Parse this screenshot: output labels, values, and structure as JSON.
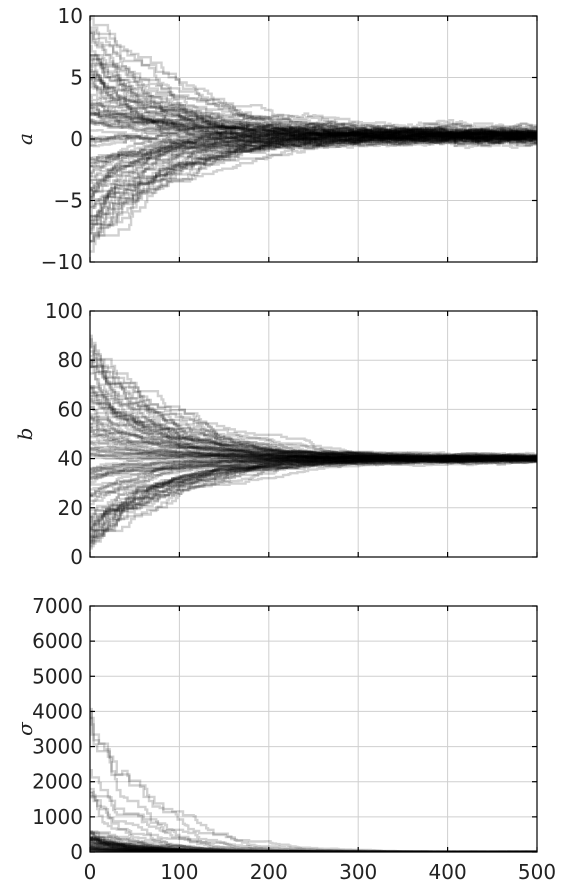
{
  "chart_data": [
    {
      "type": "line",
      "description": "MCMC walker traces",
      "ylabel": "a",
      "xlim": [
        0,
        500
      ],
      "ylim": [
        -10,
        10
      ],
      "xticks": [
        0,
        100,
        200,
        300,
        400,
        500
      ],
      "yticks": [
        -10,
        -5,
        0,
        5,
        10
      ],
      "ytick_labels": [
        "−10",
        "−5",
        "0",
        "5",
        "10"
      ],
      "show_xtick_labels": false,
      "grid": true,
      "converged_value": 0.3,
      "initial_spread": 9.5,
      "converge_step": 100,
      "line_color": "#000000",
      "line_opacity": 0.18
    },
    {
      "type": "line",
      "description": "MCMC walker traces",
      "ylabel": "b",
      "xlim": [
        0,
        500
      ],
      "ylim": [
        0,
        100
      ],
      "xticks": [
        0,
        100,
        200,
        300,
        400,
        500
      ],
      "yticks": [
        0,
        20,
        40,
        60,
        80,
        100
      ],
      "ytick_labels": [
        "0",
        "20",
        "40",
        "60",
        "80",
        "100"
      ],
      "show_xtick_labels": false,
      "grid": true,
      "converged_value": 40,
      "initial_range": [
        2,
        92
      ],
      "converge_step": 100,
      "line_color": "#000000",
      "line_opacity": 0.18
    },
    {
      "type": "line",
      "description": "MCMC walker traces",
      "ylabel": "σ",
      "xlim": [
        0,
        500
      ],
      "ylim": [
        0,
        7000
      ],
      "xticks": [
        0,
        100,
        200,
        300,
        400,
        500
      ],
      "xtick_labels": [
        "0",
        "100",
        "200",
        "300",
        "400",
        "500"
      ],
      "yticks": [
        0,
        1000,
        2000,
        3000,
        4000,
        5000,
        6000,
        7000
      ],
      "ytick_labels": [
        "0",
        "1000",
        "2000",
        "3000",
        "4000",
        "5000",
        "6000",
        "7000"
      ],
      "show_xtick_labels": true,
      "grid": true,
      "converged_value": 5,
      "initial_max": 4800,
      "converge_step": 50,
      "line_color": "#000000",
      "line_opacity": 0.18
    }
  ]
}
